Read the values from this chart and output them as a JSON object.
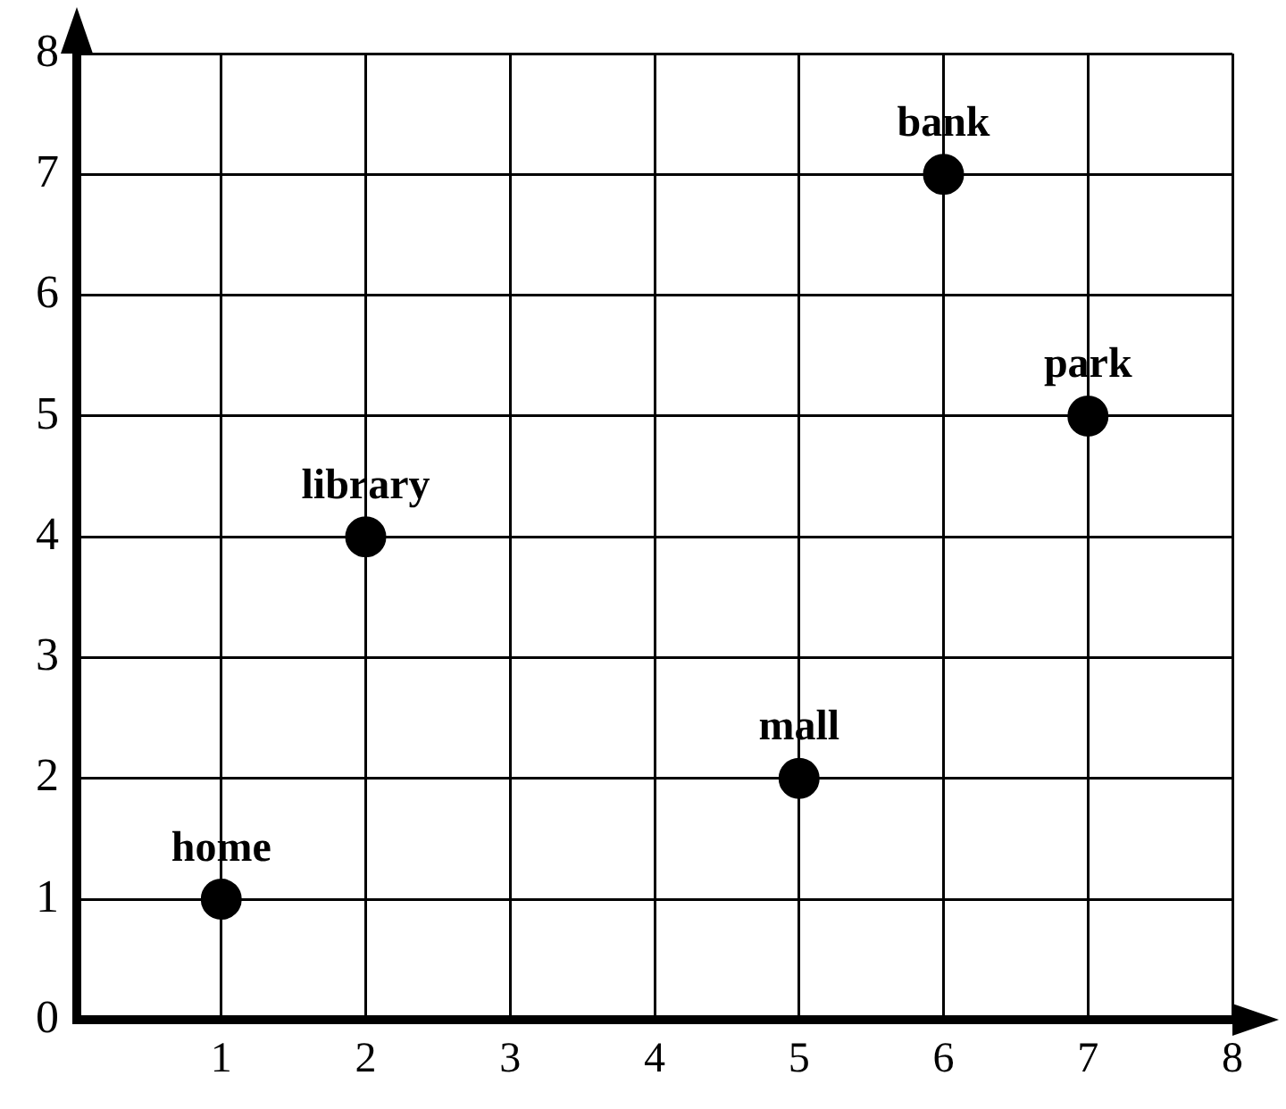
{
  "chart_data": {
    "type": "scatter",
    "series": [
      {
        "color": "#000000",
        "x": [
          1,
          2,
          5,
          6,
          7
        ],
        "values": [
          1,
          4,
          2,
          7,
          5
        ]
      }
    ],
    "xlim": [
      0,
      8
    ],
    "ylim": [
      0,
      8
    ],
    "xticks": [
      1,
      2,
      3,
      4,
      5,
      6,
      7,
      8
    ],
    "yticks": [
      0,
      1,
      2,
      3,
      4,
      5,
      6,
      7,
      8
    ],
    "grid": true,
    "legend": false,
    "marker": "circle",
    "annotations": [
      {
        "text": "home",
        "x": 1,
        "y": 1
      },
      {
        "text": "library",
        "x": 2,
        "y": 4
      },
      {
        "text": "mall",
        "x": 5,
        "y": 2
      },
      {
        "text": "bank",
        "x": 6,
        "y": 7
      },
      {
        "text": "park",
        "x": 7,
        "y": 5
      }
    ]
  }
}
